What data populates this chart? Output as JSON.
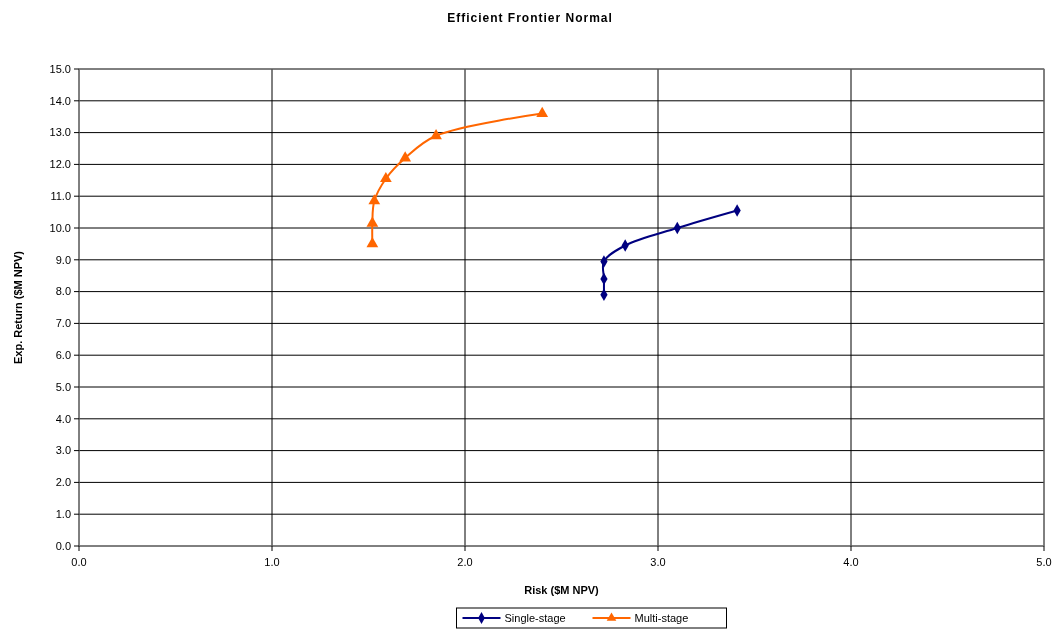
{
  "chart_data": {
    "type": "line",
    "title": "Efficient Frontier Normal",
    "xlabel": "Risk ($M NPV)",
    "ylabel": "Exp. Return ($M NPV)",
    "xlim": [
      0,
      5
    ],
    "xticks": [
      {
        "value": 0,
        "label": "0.0"
      },
      {
        "value": 1,
        "label": "1.0"
      },
      {
        "value": 2,
        "label": "2.0"
      },
      {
        "value": 3,
        "label": "3.0"
      },
      {
        "value": 4,
        "label": "4.0"
      },
      {
        "value": 5,
        "label": "5.0"
      }
    ],
    "ylim": [
      0,
      15
    ],
    "yticks": [
      {
        "value": 0,
        "label": "0.0"
      },
      {
        "value": 1,
        "label": "1.0"
      },
      {
        "value": 2,
        "label": "2.0"
      },
      {
        "value": 3,
        "label": "3.0"
      },
      {
        "value": 4,
        "label": "4.0"
      },
      {
        "value": 5,
        "label": "5.0"
      },
      {
        "value": 6,
        "label": "6.0"
      },
      {
        "value": 7,
        "label": "7.0"
      },
      {
        "value": 8,
        "label": "8.0"
      },
      {
        "value": 9,
        "label": "9.0"
      },
      {
        "value": 10,
        "label": "10.0"
      },
      {
        "value": 11,
        "label": "11.0"
      },
      {
        "value": 12,
        "label": "12.0"
      },
      {
        "value": 13,
        "label": "13.0"
      },
      {
        "value": 14,
        "label": "14.0"
      },
      {
        "value": 15,
        "label": "15.0"
      }
    ],
    "grid": true,
    "legend": "bottom",
    "line_style": "solid",
    "series": [
      {
        "name": "Single-stage",
        "color": "#000080",
        "marker": "diamond",
        "x": [
          2.72,
          2.72,
          2.72,
          2.83,
          3.1,
          3.41
        ],
        "values": [
          7.9,
          8.4,
          8.95,
          9.45,
          10.0,
          10.55
        ]
      },
      {
        "name": "Multi-stage",
        "color": "#ff6600",
        "marker": "triangle",
        "x": [
          1.52,
          1.52,
          1.53,
          1.59,
          1.69,
          1.85,
          2.4
        ],
        "values": [
          9.5,
          10.15,
          10.85,
          11.55,
          12.2,
          12.9,
          13.6
        ]
      }
    ]
  }
}
